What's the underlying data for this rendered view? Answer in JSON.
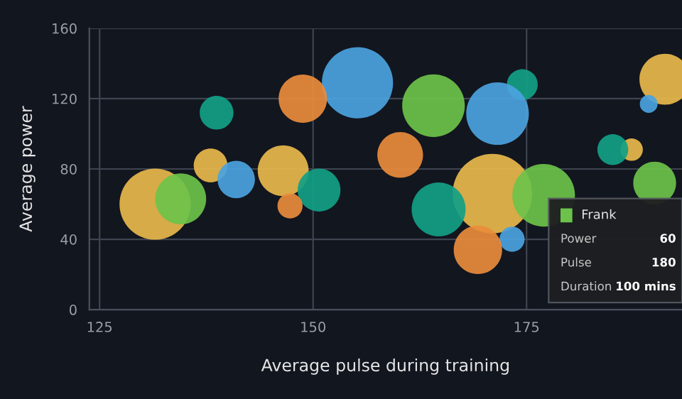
{
  "chart_data": {
    "type": "bubble",
    "xlabel": "Average pulse during training",
    "ylabel": "Average power",
    "xlim": [
      123.8,
      193.2
    ],
    "xticks": [
      125,
      150,
      175
    ],
    "ylim": [
      0,
      160
    ],
    "yticks": [
      0,
      40,
      80,
      120,
      160
    ],
    "grid": true,
    "legend": "bottom right",
    "series": [
      {
        "color": "#e8b84b",
        "x": [
          131.5,
          138,
          146.5,
          171,
          187.3,
          191.2
        ],
        "values": [
          60,
          82,
          79,
          66,
          91,
          131
        ],
        "sizes": [
          0.8,
          0.18,
          0.41,
          1,
          0.08,
          0.41
        ]
      },
      {
        "name": "Frank",
        "color": "#6cc24a",
        "x": [
          134.5,
          164.1,
          177,
          190
        ],
        "values": [
          63,
          116,
          65,
          72
        ],
        "sizes": [
          0.41,
          0.62,
          0.62,
          0.29
        ]
      },
      {
        "color": "#12a085",
        "x": [
          138.7,
          150.7,
          164.7,
          174.5,
          185.1
        ],
        "values": [
          112,
          68,
          57,
          128,
          91
        ],
        "sizes": [
          0.18,
          0.29,
          0.46,
          0.15,
          0.15
        ]
      },
      {
        "color": "#4ba3e0",
        "x": [
          141,
          155.2,
          171.6,
          173.3,
          189.3
        ],
        "values": [
          74,
          129,
          111.5,
          40,
          117
        ],
        "sizes": [
          0.22,
          0.8,
          0.62,
          0.1,
          0.05
        ]
      },
      {
        "color": "#e98c3c",
        "x": [
          147.3,
          148.8,
          160.2,
          169.3
        ],
        "values": [
          59,
          120,
          88,
          34
        ],
        "sizes": [
          0.1,
          0.37,
          0.33,
          0.37
        ]
      }
    ],
    "annotations": [
      "Power",
      "60",
      "Pulse",
      "180",
      "Duration",
      "100 mins"
    ]
  }
}
